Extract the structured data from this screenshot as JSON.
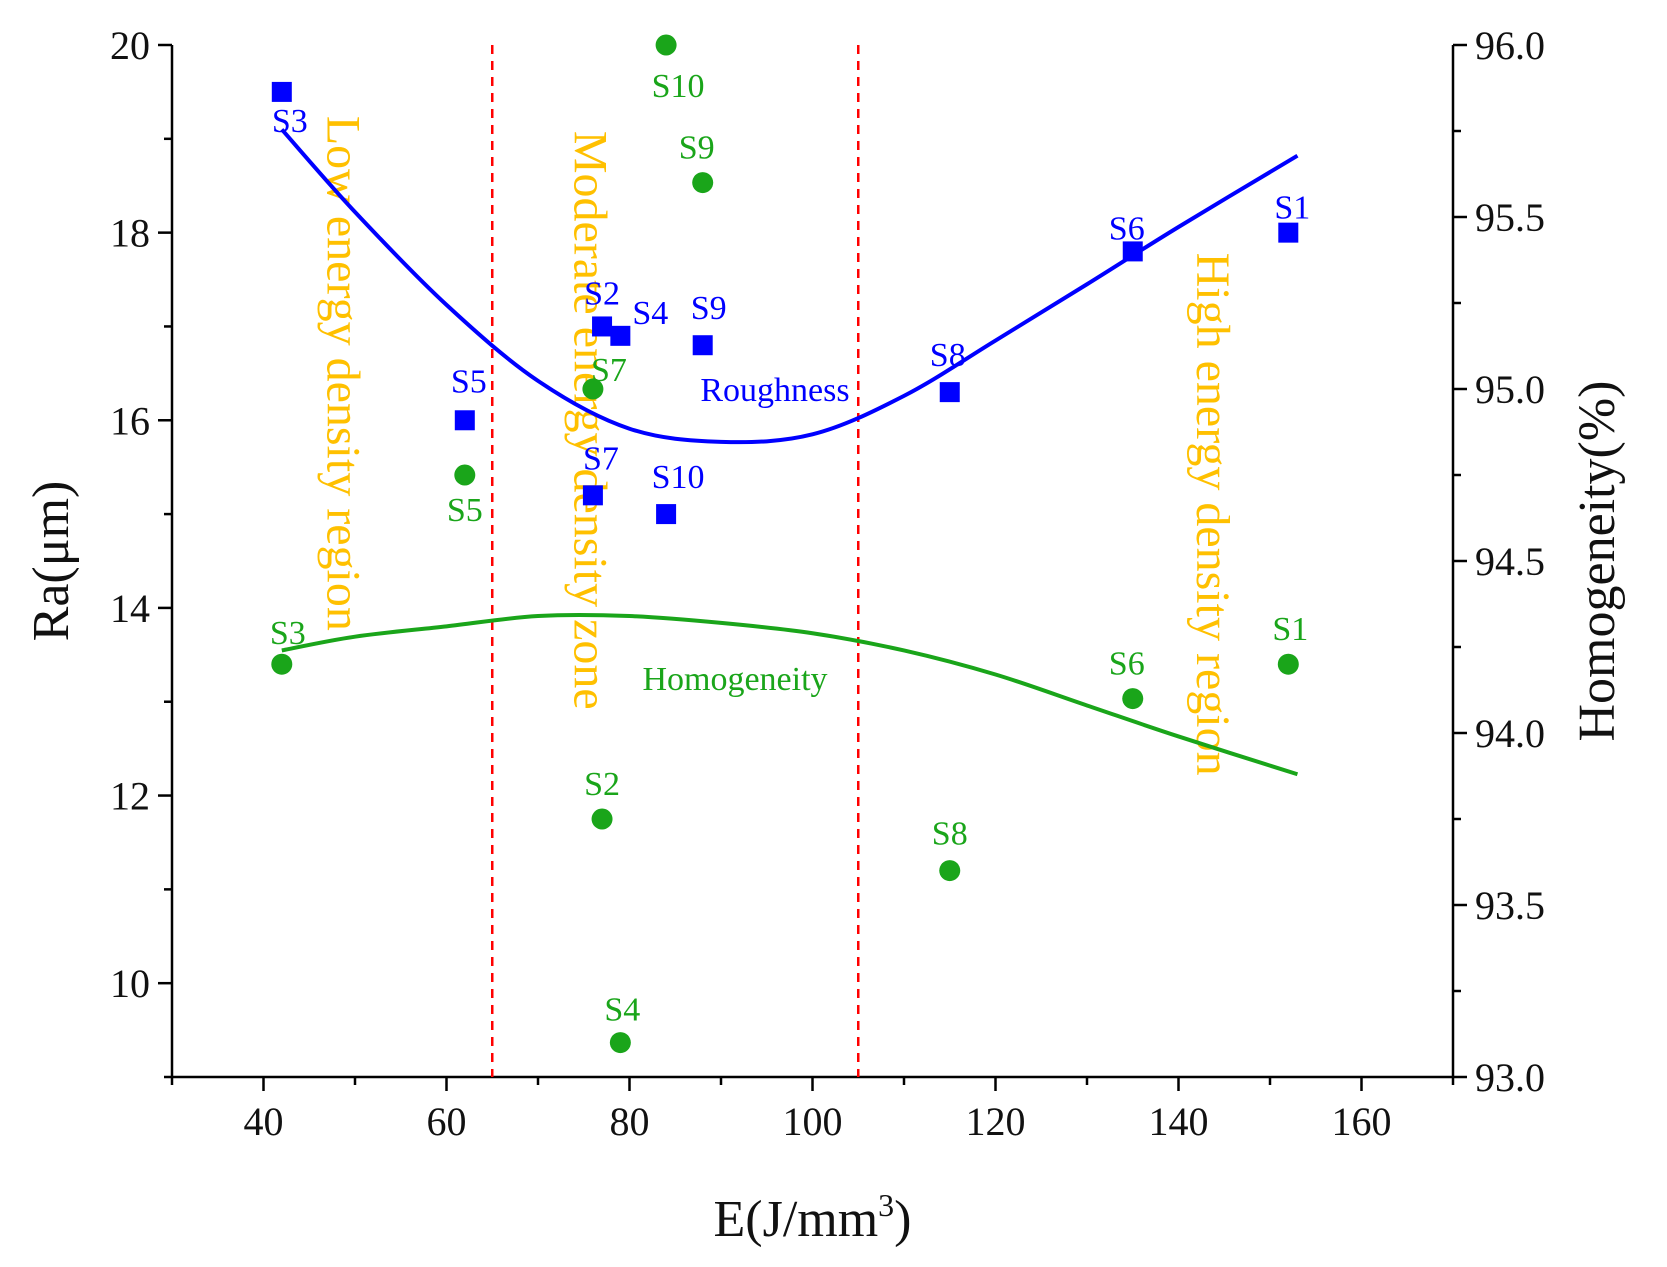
{
  "chart_data": {
    "type": "scatter",
    "x_axis": {
      "label": "E(J/mm",
      "label_sup": "3",
      "label_tail": ")",
      "range": [
        30,
        170
      ],
      "ticks": [
        40,
        60,
        80,
        100,
        120,
        140,
        160
      ],
      "tick_labels": [
        "40",
        "60",
        "80",
        "100",
        "120",
        "140",
        "160"
      ]
    },
    "y_left": {
      "label": "Ra(μm)",
      "range": [
        9,
        20
      ],
      "ticks": [
        10,
        12,
        14,
        16,
        18,
        20
      ],
      "tick_labels": [
        "10",
        "12",
        "14",
        "16",
        "18",
        "20"
      ]
    },
    "y_right": {
      "label": "Homogeneity(%)",
      "range": [
        93.0,
        96.0
      ],
      "ticks": [
        93.0,
        93.5,
        94.0,
        94.5,
        95.0,
        95.5,
        96.0
      ],
      "tick_labels": [
        "93.0",
        "93.5",
        "94.0",
        "94.5",
        "95.0",
        "95.5",
        "96.0"
      ]
    },
    "region_boundaries_x": [
      65,
      105
    ],
    "regions": [
      {
        "label": "Low energy density region",
        "x": 47,
        "y": 16.5
      },
      {
        "label": "Moderate energy density zone",
        "x": 74,
        "y": 16.0
      },
      {
        "label": "High energy density region",
        "x": 142,
        "y": 15.0
      }
    ],
    "series": [
      {
        "name": "Roughness",
        "axis": "left",
        "marker": "square",
        "color": "#0000ff",
        "points": [
          {
            "label": "S3",
            "x": 42,
            "y": 19.5
          },
          {
            "label": "S5",
            "x": 62,
            "y": 16.0
          },
          {
            "label": "S2",
            "x": 77,
            "y": 17.0
          },
          {
            "label": "S4",
            "x": 79,
            "y": 16.9
          },
          {
            "label": "S7",
            "x": 76,
            "y": 15.2
          },
          {
            "label": "S10",
            "x": 84,
            "y": 15.0
          },
          {
            "label": "S9",
            "x": 88,
            "y": 16.8
          },
          {
            "label": "S8",
            "x": 115,
            "y": 16.3
          },
          {
            "label": "S6",
            "x": 135,
            "y": 17.8
          },
          {
            "label": "S1",
            "x": 152,
            "y": 18.0
          }
        ],
        "fit": [
          [
            42,
            19.1
          ],
          [
            50,
            18.22
          ],
          [
            60,
            17.23
          ],
          [
            70,
            16.42
          ],
          [
            80,
            15.91
          ],
          [
            90,
            15.77
          ],
          [
            100,
            15.85
          ],
          [
            110,
            16.26
          ],
          [
            120,
            16.85
          ],
          [
            130,
            17.45
          ],
          [
            140,
            18.06
          ],
          [
            153,
            18.82
          ]
        ]
      },
      {
        "name": "Homogeneity",
        "axis": "right",
        "marker": "circle",
        "color": "#1aa51a",
        "points": [
          {
            "label": "S3",
            "x": 42,
            "y": 94.2
          },
          {
            "label": "S5",
            "x": 62,
            "y": 94.75
          },
          {
            "label": "S7",
            "x": 76,
            "y": 95.0
          },
          {
            "label": "S2",
            "x": 77,
            "y": 93.75
          },
          {
            "label": "S4",
            "x": 79,
            "y": 93.1
          },
          {
            "label": "S10",
            "x": 84,
            "y": 96.0
          },
          {
            "label": "S9",
            "x": 88,
            "y": 95.6
          },
          {
            "label": "S8",
            "x": 115,
            "y": 93.6
          },
          {
            "label": "S6",
            "x": 135,
            "y": 94.1
          },
          {
            "label": "S1",
            "x": 152,
            "y": 94.2
          }
        ],
        "fit": [
          [
            42,
            94.24
          ],
          [
            50,
            94.28
          ],
          [
            60,
            94.31
          ],
          [
            70,
            94.34
          ],
          [
            80,
            94.34
          ],
          [
            90,
            94.32
          ],
          [
            100,
            94.29
          ],
          [
            110,
            94.24
          ],
          [
            120,
            94.17
          ],
          [
            130,
            94.08
          ],
          [
            140,
            93.99
          ],
          [
            153,
            93.88
          ]
        ]
      }
    ]
  }
}
